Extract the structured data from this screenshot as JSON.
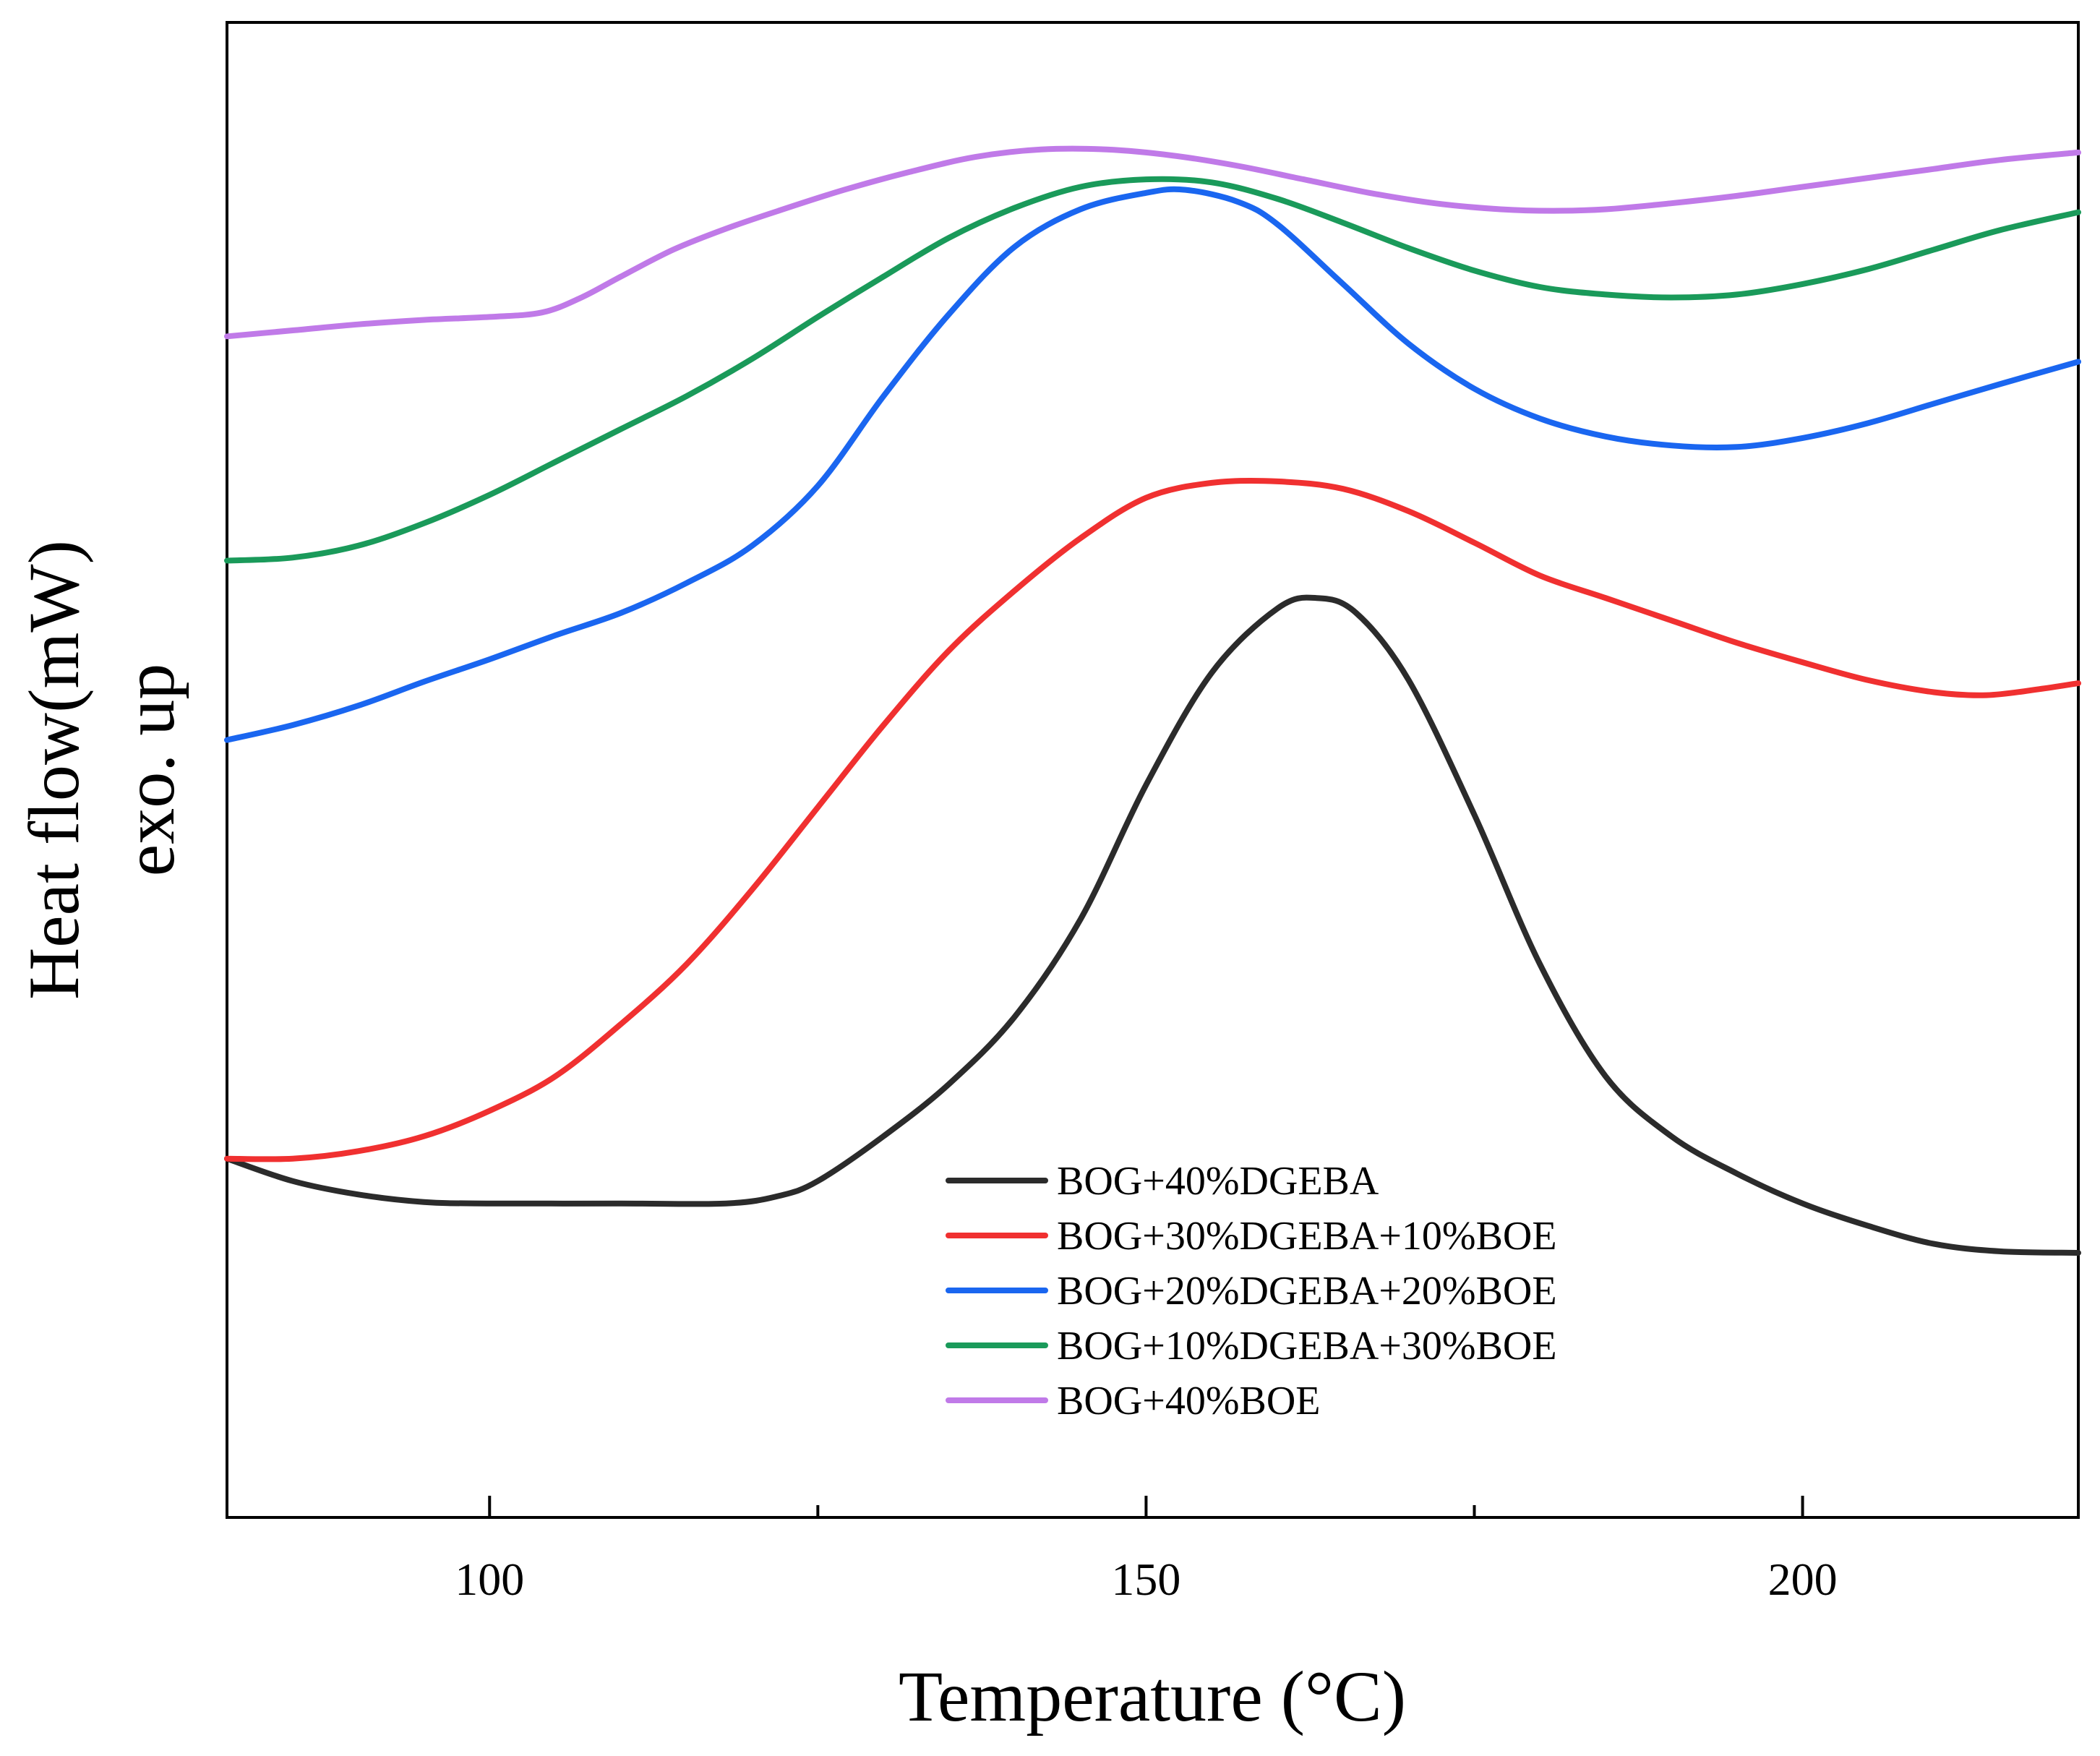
{
  "chart_data": {
    "type": "line",
    "title": "",
    "xlabel": "Temperature (°C)",
    "ylabel_lines": [
      "Heat flow(mW)",
      "exo. up"
    ],
    "xlim": [
      80,
      221
    ],
    "ylim": [
      0,
      100
    ],
    "x_ticks": [
      100,
      150,
      200
    ],
    "x_minor_ticks": [
      125,
      175
    ],
    "y_ticks_shown": false,
    "legend_position": "lower-center",
    "series": [
      {
        "name": "BOG+40%DGEBA",
        "color": "#2b2b2b",
        "points": [
          [
            80,
            24
          ],
          [
            85,
            22.5
          ],
          [
            90,
            21.6
          ],
          [
            95,
            21.1
          ],
          [
            100,
            21
          ],
          [
            110,
            21
          ],
          [
            118,
            21
          ],
          [
            122,
            21.5
          ],
          [
            125,
            22.5
          ],
          [
            130,
            25.5
          ],
          [
            135,
            29
          ],
          [
            140,
            33.5
          ],
          [
            145,
            40
          ],
          [
            150,
            49
          ],
          [
            155,
            56.5
          ],
          [
            160,
            60.8
          ],
          [
            163,
            61.5
          ],
          [
            166,
            60.5
          ],
          [
            170,
            56
          ],
          [
            175,
            47
          ],
          [
            180,
            37
          ],
          [
            185,
            29.5
          ],
          [
            190,
            25.5
          ],
          [
            195,
            23
          ],
          [
            200,
            21
          ],
          [
            205,
            19.5
          ],
          [
            210,
            18.3
          ],
          [
            215,
            17.8
          ],
          [
            221,
            17.7
          ]
        ]
      },
      {
        "name": "BOG+30%DGEBA+10%BOE",
        "color": "#f03030",
        "points": [
          [
            80,
            24
          ],
          [
            85,
            24
          ],
          [
            90,
            24.5
          ],
          [
            95,
            25.5
          ],
          [
            100,
            27.2
          ],
          [
            105,
            29.5
          ],
          [
            110,
            33
          ],
          [
            115,
            37
          ],
          [
            120,
            42
          ],
          [
            125,
            47.5
          ],
          [
            130,
            53
          ],
          [
            135,
            58
          ],
          [
            140,
            62
          ],
          [
            145,
            65.5
          ],
          [
            150,
            68.2
          ],
          [
            155,
            69.2
          ],
          [
            160,
            69.3
          ],
          [
            165,
            68.8
          ],
          [
            170,
            67.3
          ],
          [
            175,
            65.2
          ],
          [
            180,
            63
          ],
          [
            185,
            61.5
          ],
          [
            190,
            60
          ],
          [
            195,
            58.5
          ],
          [
            200,
            57.2
          ],
          [
            205,
            56
          ],
          [
            210,
            55.2
          ],
          [
            214,
            55
          ],
          [
            218,
            55.4
          ],
          [
            221,
            55.8
          ]
        ]
      },
      {
        "name": "BOG+20%DGEBA+20%BOE",
        "color": "#1a66f0",
        "points": [
          [
            80,
            52
          ],
          [
            85,
            53
          ],
          [
            90,
            54.3
          ],
          [
            95,
            55.9
          ],
          [
            100,
            57.4
          ],
          [
            105,
            59
          ],
          [
            110,
            60.5
          ],
          [
            115,
            62.5
          ],
          [
            120,
            65
          ],
          [
            125,
            69
          ],
          [
            130,
            75
          ],
          [
            135,
            80.5
          ],
          [
            140,
            85
          ],
          [
            145,
            87.5
          ],
          [
            150,
            88.6
          ],
          [
            153,
            88.8
          ],
          [
            157,
            88
          ],
          [
            160,
            86.5
          ],
          [
            165,
            82.5
          ],
          [
            170,
            78.5
          ],
          [
            175,
            75.5
          ],
          [
            180,
            73.5
          ],
          [
            185,
            72.3
          ],
          [
            190,
            71.7
          ],
          [
            195,
            71.6
          ],
          [
            200,
            72.2
          ],
          [
            205,
            73.2
          ],
          [
            210,
            74.5
          ],
          [
            215,
            75.8
          ],
          [
            221,
            77.3
          ]
        ]
      },
      {
        "name": "BOG+10%DGEBA+30%BOE",
        "color": "#1a9a5a",
        "points": [
          [
            80,
            64
          ],
          [
            85,
            64.2
          ],
          [
            90,
            65
          ],
          [
            95,
            66.5
          ],
          [
            100,
            68.4
          ],
          [
            105,
            70.6
          ],
          [
            110,
            72.8
          ],
          [
            115,
            75
          ],
          [
            120,
            77.5
          ],
          [
            125,
            80.3
          ],
          [
            130,
            83
          ],
          [
            135,
            85.6
          ],
          [
            140,
            87.6
          ],
          [
            145,
            89
          ],
          [
            150,
            89.5
          ],
          [
            155,
            89.3
          ],
          [
            160,
            88.2
          ],
          [
            165,
            86.6
          ],
          [
            170,
            84.9
          ],
          [
            175,
            83.4
          ],
          [
            180,
            82.3
          ],
          [
            185,
            81.8
          ],
          [
            190,
            81.6
          ],
          [
            195,
            81.8
          ],
          [
            200,
            82.5
          ],
          [
            205,
            83.5
          ],
          [
            210,
            84.8
          ],
          [
            215,
            86.1
          ],
          [
            221,
            87.3
          ]
        ]
      },
      {
        "name": "BOG+40%BOE",
        "color": "#c07ae8",
        "points": [
          [
            80,
            79
          ],
          [
            85,
            79.4
          ],
          [
            90,
            79.8
          ],
          [
            95,
            80.1
          ],
          [
            100,
            80.3
          ],
          [
            104,
            80.6
          ],
          [
            107,
            81.6
          ],
          [
            110,
            83
          ],
          [
            114,
            84.8
          ],
          [
            118,
            86.2
          ],
          [
            122,
            87.4
          ],
          [
            127,
            88.8
          ],
          [
            132,
            90
          ],
          [
            137,
            91
          ],
          [
            142,
            91.5
          ],
          [
            147,
            91.5
          ],
          [
            152,
            91.1
          ],
          [
            157,
            90.4
          ],
          [
            162,
            89.5
          ],
          [
            167,
            88.6
          ],
          [
            172,
            87.9
          ],
          [
            177,
            87.5
          ],
          [
            181,
            87.4
          ],
          [
            185,
            87.5
          ],
          [
            190,
            87.9
          ],
          [
            195,
            88.4
          ],
          [
            200,
            89
          ],
          [
            205,
            89.6
          ],
          [
            210,
            90.2
          ],
          [
            215,
            90.8
          ],
          [
            221,
            91.3
          ]
        ]
      }
    ]
  }
}
